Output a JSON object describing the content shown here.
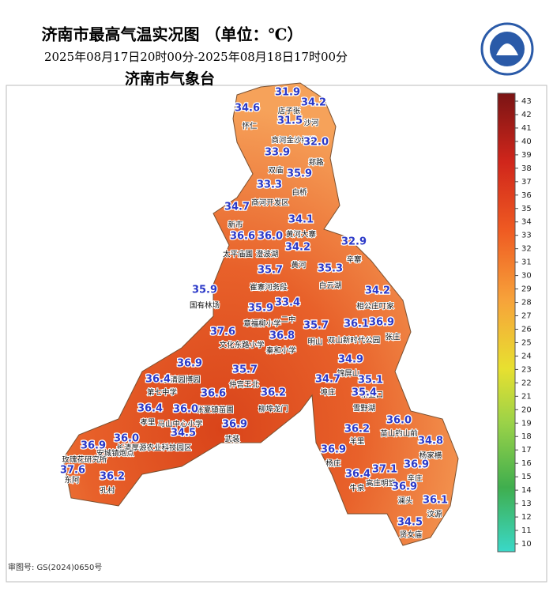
{
  "header": {
    "title": "济南市最高气温实况图 （单位：℃）",
    "subtitle": "2025年08月17日20时00分-2025年08月18日17时00分",
    "agency": "济南市气象台"
  },
  "values": [
    "31.9",
    "34.6",
    "34.2",
    "31.5",
    "32.0",
    "33.9",
    "35.9",
    "33.3",
    "34.7",
    "34.1",
    "36.6",
    "36.0",
    "32.9",
    "34.2",
    "35.7",
    "35.3",
    "35.9",
    "34.2",
    "35.9",
    "33.4",
    "35.7",
    "36.1",
    "36.9",
    "37.6",
    "36.8",
    "34.9",
    "36.9",
    "35.7",
    "34.7",
    "35.1",
    "36.4",
    "35.4",
    "36.6",
    "36.2",
    "36.4",
    "36.0",
    "36.0",
    "36.2",
    "34.5",
    "36.9",
    "34.8",
    "36.9",
    "36.0",
    "36.9",
    "36.9",
    "37.1",
    "37.6",
    "36.2",
    "36.4",
    "36.9",
    "36.1",
    "34.5"
  ],
  "places": [
    "店子张",
    "怀仁",
    "沙河",
    "商河金沙绿港",
    "双庙",
    "郑路",
    "白桥",
    "商河开发区",
    "新市",
    "黄河大寨",
    "太平庙圃",
    "澄波湖",
    "辛寨",
    "黄河",
    "白云湖",
    "崔寨河务段",
    "国有林场",
    "相公庄叮家",
    "章福柳小学",
    "二中",
    "文化东路小学",
    "秦和小学",
    "明山",
    "双山新时代公园",
    "张庄",
    "锦屏山",
    "埠庄",
    "茶业口",
    "长清园博园",
    "仲宫王北",
    "第七中学",
    "雪野湖",
    "张夏镇苗圃",
    "柳埠龙门",
    "孝里",
    "马山中心小学",
    "苗山钓山前",
    "羊里",
    "武装",
    "长清厚源农业科技园区",
    "安城镇炮点",
    "玫瑰花研究所",
    "杨家横",
    "杨庄",
    "辛庄",
    "高庄明堂",
    "东阿",
    "孔村",
    "牛泉",
    "澜头",
    "汶源",
    "贤女庙"
  ],
  "colorbar": {
    "ticks": [
      43,
      42,
      41,
      40,
      39,
      38,
      37,
      36,
      35,
      34,
      33,
      32,
      31,
      30,
      29,
      28,
      27,
      26,
      25,
      24,
      23,
      22,
      21,
      20,
      19,
      18,
      17,
      16,
      15,
      14,
      13,
      12,
      11,
      10
    ]
  },
  "footer": "审图号: GS(2024)0650号"
}
